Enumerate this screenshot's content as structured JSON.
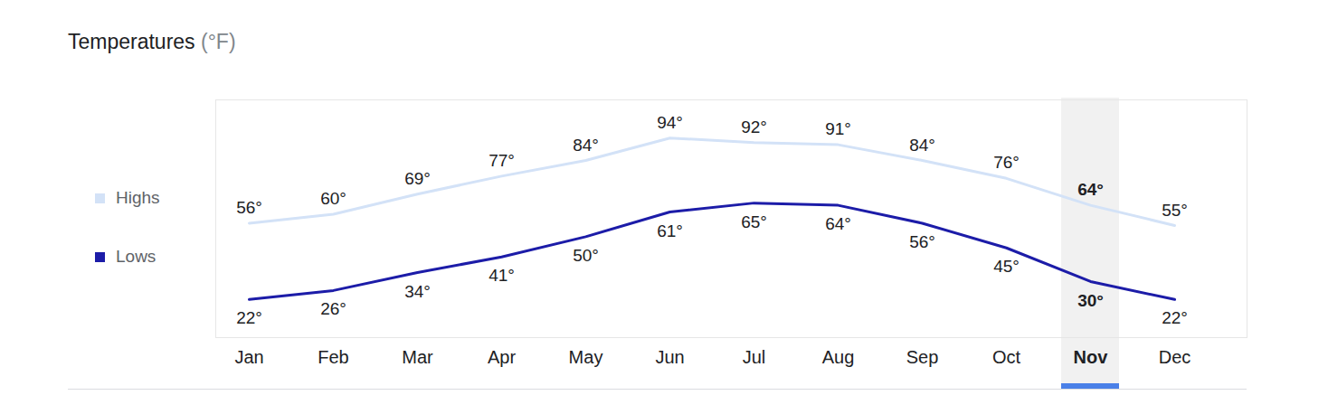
{
  "chart_data": {
    "type": "line",
    "title": "Temperatures (°F)",
    "categories": [
      "Jan",
      "Feb",
      "Mar",
      "Apr",
      "May",
      "Jun",
      "Jul",
      "Aug",
      "Sep",
      "Oct",
      "Nov",
      "Dec"
    ],
    "series": [
      {
        "name": "Highs",
        "color": "#d3e2f7",
        "values": [
          56,
          60,
          69,
          77,
          84,
          94,
          92,
          91,
          84,
          76,
          64,
          55
        ],
        "value_labels": [
          "56°",
          "60°",
          "69°",
          "77°",
          "84°",
          "94°",
          "92°",
          "91°",
          "84°",
          "76°",
          "64°",
          "55°"
        ]
      },
      {
        "name": "Lows",
        "color": "#1c1ca8",
        "values": [
          22,
          26,
          34,
          41,
          50,
          61,
          65,
          64,
          56,
          45,
          30,
          22
        ],
        "value_labels": [
          "22°",
          "26°",
          "34°",
          "41°",
          "50°",
          "61°",
          "65°",
          "64°",
          "56°",
          "45°",
          "30°",
          "22°"
        ]
      }
    ],
    "ylim": [
      5,
      111
    ],
    "data_labels": true,
    "tick_labels": "x",
    "legend": "left"
  }
}
